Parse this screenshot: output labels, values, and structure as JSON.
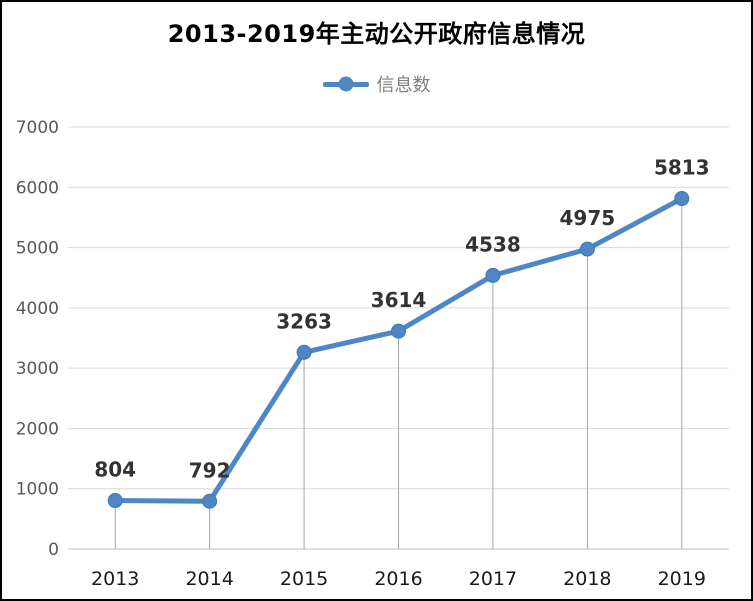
{
  "chart_data": {
    "type": "line",
    "title": "2013-2019年主动公开政府信息情况",
    "legend": "信息数",
    "series": [
      {
        "name": "信息数",
        "values": [
          804,
          792,
          3263,
          3614,
          4538,
          4975,
          5813
        ]
      }
    ],
    "categories": [
      "2013",
      "2014",
      "2015",
      "2016",
      "2017",
      "2018",
      "2019"
    ],
    "data_labels_shown": true,
    "xlabel": "",
    "ylabel": "",
    "ylim": [
      0,
      7000
    ],
    "ytick_step": 1000,
    "yticks": [
      0,
      1000,
      2000,
      3000,
      4000,
      5000,
      6000,
      7000
    ],
    "grid": "horizontal",
    "drop_lines": true,
    "legend_position": "top",
    "colors": {
      "series_line": "#4f87c6",
      "marker_fill": "#4f87c6",
      "marker_stroke": "#4076ad",
      "gridline": "#d9d9d9",
      "baseline": "#bfbfbf",
      "drop_line": "#a6a6a6",
      "title_text": "#000000",
      "legend_text": "#7f7f7f",
      "ytick_text": "#595959",
      "xtick_text": "#1a1a1a",
      "data_label_text": "#333333",
      "frame_border": "#000000",
      "background": "#ffffff"
    }
  }
}
